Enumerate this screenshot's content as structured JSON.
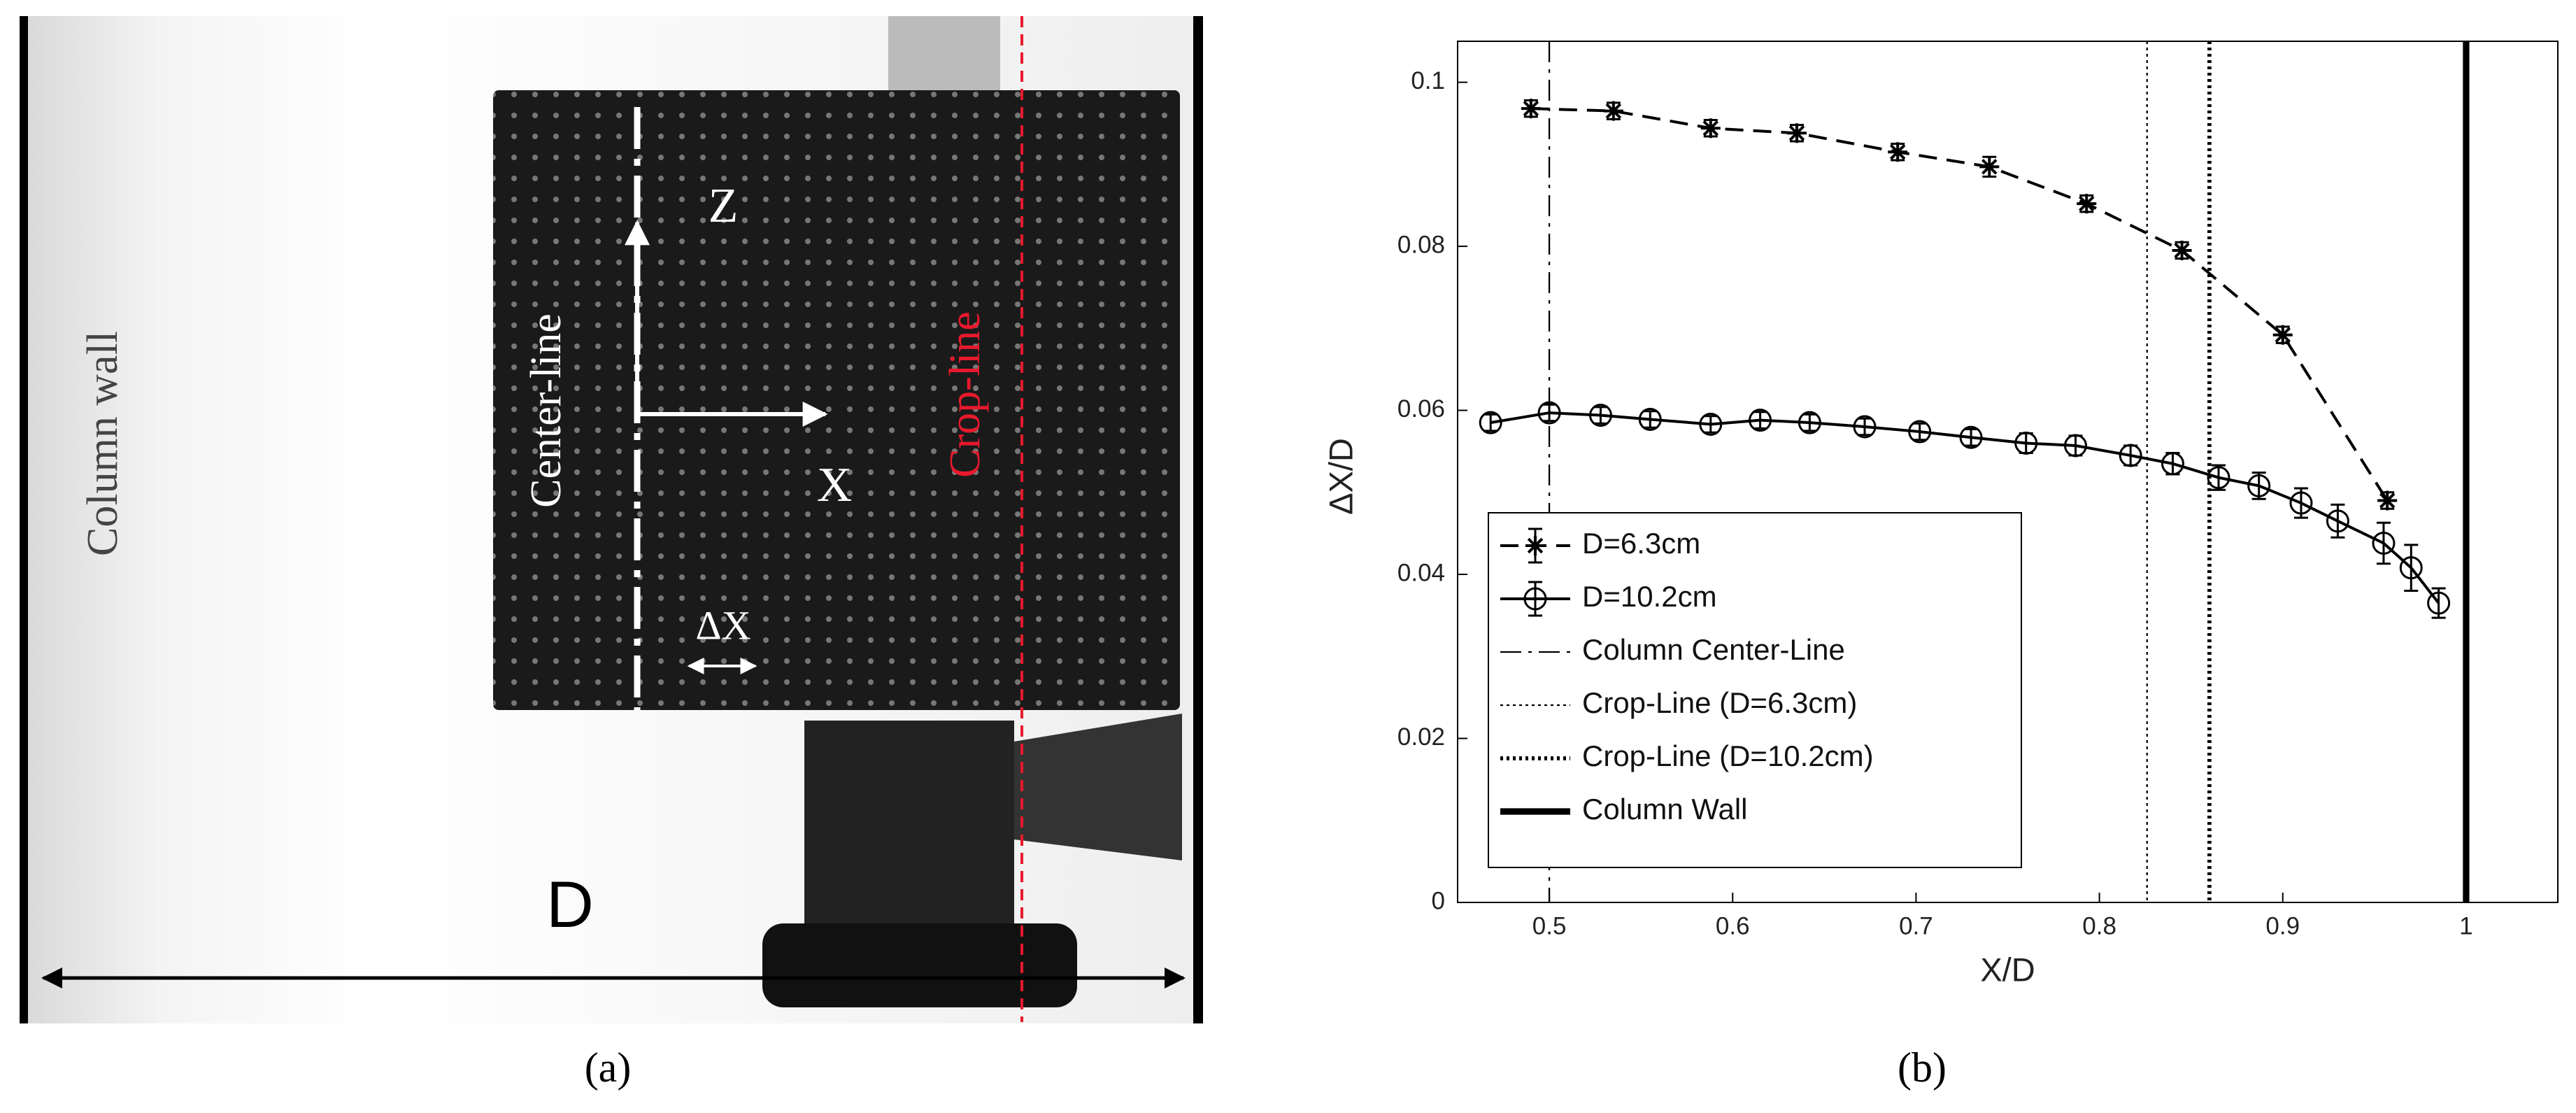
{
  "panel_a": {
    "caption": "(a)",
    "wall_label": "Column  wall",
    "center_label": "Center-line",
    "z_label": "Z",
    "x_label": "X",
    "crop_label": "Crop-line",
    "dx_label": "ΔX",
    "d_label": "D"
  },
  "chart_data": {
    "type": "line",
    "caption": "(b)",
    "x_label": "X/D",
    "y_label": "ΔX/D",
    "xlim": [
      0.45,
      1.05
    ],
    "xticks": [
      0.5,
      0.6,
      0.7,
      0.8,
      0.9,
      1
    ],
    "ylim": [
      0,
      0.105
    ],
    "yticks": [
      0,
      0.02,
      0.04,
      0.06,
      0.08,
      0.1
    ],
    "series": [
      {
        "name": "D=6.3cm",
        "color": "#000000",
        "line_style": "dashed",
        "marker": "asterisk",
        "x": [
          0.49,
          0.535,
          0.588,
          0.635,
          0.69,
          0.74,
          0.793,
          0.845,
          0.9,
          0.957
        ],
        "values": [
          0.0968,
          0.0965,
          0.0944,
          0.0938,
          0.0915,
          0.0897,
          0.0852,
          0.0795,
          0.0692,
          0.049
        ],
        "errors": [
          0.001,
          0.001,
          0.001,
          0.001,
          0.001,
          0.0012,
          0.001,
          0.001,
          0.001,
          0.001
        ]
      },
      {
        "name": "D=10.2cm",
        "color": "#000000",
        "line_style": "solid",
        "marker": "circle",
        "x": [
          0.468,
          0.5,
          0.528,
          0.555,
          0.588,
          0.615,
          0.642,
          0.672,
          0.702,
          0.73,
          0.76,
          0.787,
          0.817,
          0.84,
          0.865,
          0.887,
          0.91,
          0.93,
          0.955,
          0.97,
          0.985
        ],
        "values": [
          0.0585,
          0.0597,
          0.0594,
          0.0589,
          0.0583,
          0.0588,
          0.0585,
          0.058,
          0.0574,
          0.0567,
          0.056,
          0.0557,
          0.0545,
          0.0535,
          0.0518,
          0.0508,
          0.0487,
          0.0465,
          0.0438,
          0.0408,
          0.0365
        ],
        "errors": [
          0.001,
          0.001,
          0.001,
          0.001,
          0.001,
          0.001,
          0.001,
          0.001,
          0.001,
          0.001,
          0.0012,
          0.0012,
          0.0012,
          0.0013,
          0.0015,
          0.0016,
          0.0018,
          0.002,
          0.0025,
          0.0028,
          0.0018
        ]
      }
    ],
    "vlines": [
      {
        "name": "Column Center-Line",
        "x": 0.5,
        "line_style": "dashdot",
        "width": 1
      },
      {
        "name": "Crop-Line (D=6.3cm)",
        "x": 0.826,
        "line_style": "dotted",
        "width": 1
      },
      {
        "name": "Crop-Line (D=10.2cm)",
        "x": 0.86,
        "line_style": "dotted",
        "width": 2.5
      },
      {
        "name": "Column Wall",
        "x": 1,
        "line_style": "solid",
        "width": 4
      }
    ]
  }
}
